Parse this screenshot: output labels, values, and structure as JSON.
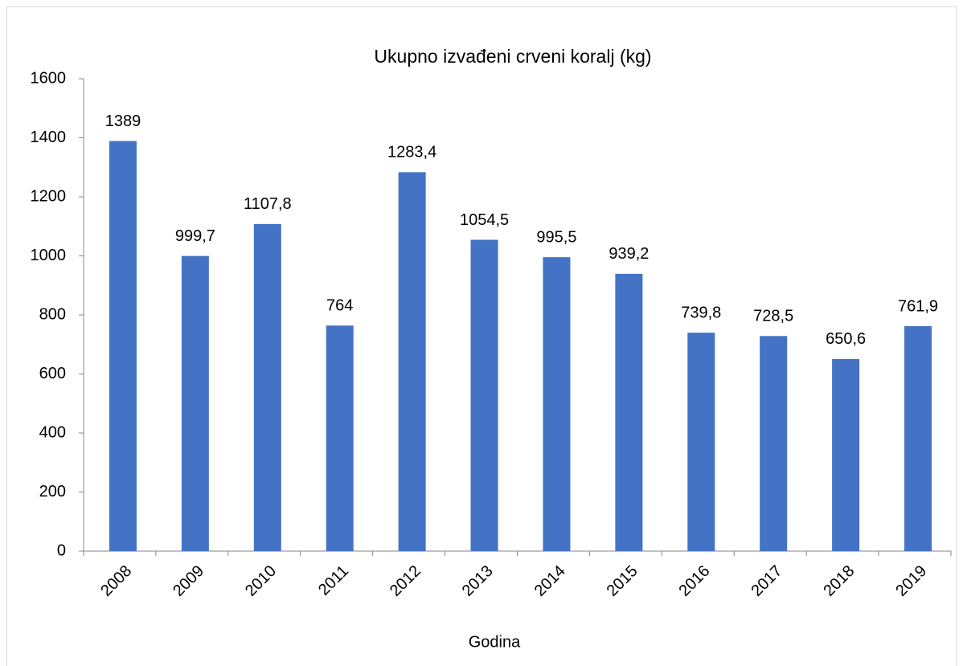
{
  "chart_data": {
    "type": "bar",
    "title": "Ukupno izvađeni crveni koralj (kg)",
    "x_label": "Godina",
    "categories": [
      "2008",
      "2009",
      "2010",
      "2011",
      "2012",
      "2013",
      "2014",
      "2015",
      "2016",
      "2017",
      "2018",
      "2019"
    ],
    "values": [
      1389,
      999.7,
      1107.8,
      764,
      1283.4,
      1054.5,
      995.5,
      939.2,
      739.8,
      728.5,
      650.6,
      761.9
    ],
    "value_labels": [
      "1389",
      "999,7",
      "1107,8",
      "764",
      "1283,4",
      "1054,5",
      "995,5",
      "939,2",
      "739,8",
      "728,5",
      "650,6",
      "761,9"
    ],
    "color": "#4472c4",
    "ylim": [
      0,
      1600
    ],
    "yticks": [
      0,
      200,
      400,
      600,
      800,
      1000,
      1200,
      1400,
      1600
    ],
    "grid": false
  }
}
